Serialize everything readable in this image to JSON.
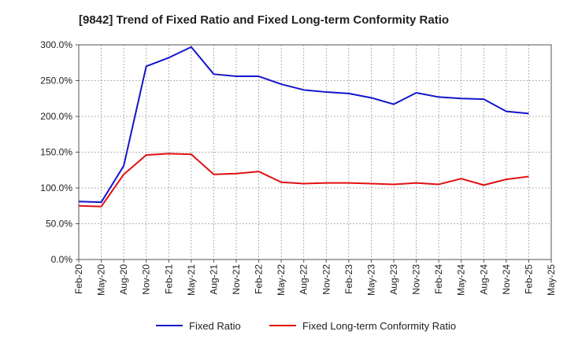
{
  "chart_data": {
    "type": "line",
    "title": "[9842]  Trend of Fixed Ratio and Fixed Long-term Conformity Ratio",
    "xlabel": "",
    "ylabel": "",
    "x": [
      "Feb-20",
      "May-20",
      "Aug-20",
      "Nov-20",
      "Feb-21",
      "May-21",
      "Aug-21",
      "Nov-21",
      "Feb-22",
      "May-22",
      "Aug-22",
      "Nov-22",
      "Feb-23",
      "May-23",
      "Aug-23",
      "Nov-23",
      "Feb-24",
      "May-24",
      "Aug-24",
      "Nov-24",
      "Feb-25",
      "May-25"
    ],
    "ylim": [
      0,
      300
    ],
    "yticks": [
      "0.0%",
      "50.0%",
      "100.0%",
      "150.0%",
      "200.0%",
      "250.0%",
      "300.0%"
    ],
    "grid": true,
    "legend_position": "bottom",
    "series": [
      {
        "name": "Fixed Ratio",
        "color": "#1414cc",
        "values": [
          81,
          80,
          131,
          270,
          282,
          297,
          259,
          256,
          256,
          245,
          237,
          234,
          232,
          226,
          217,
          233,
          227,
          225,
          224,
          207,
          204,
          null
        ]
      },
      {
        "name": "Fixed Long-term Conformity Ratio",
        "color": "#e01010",
        "values": [
          75,
          74,
          119,
          146,
          148,
          147,
          119,
          120,
          123,
          108,
          106,
          107,
          107,
          106,
          105,
          107,
          105,
          113,
          104,
          112,
          116,
          null
        ]
      }
    ]
  }
}
